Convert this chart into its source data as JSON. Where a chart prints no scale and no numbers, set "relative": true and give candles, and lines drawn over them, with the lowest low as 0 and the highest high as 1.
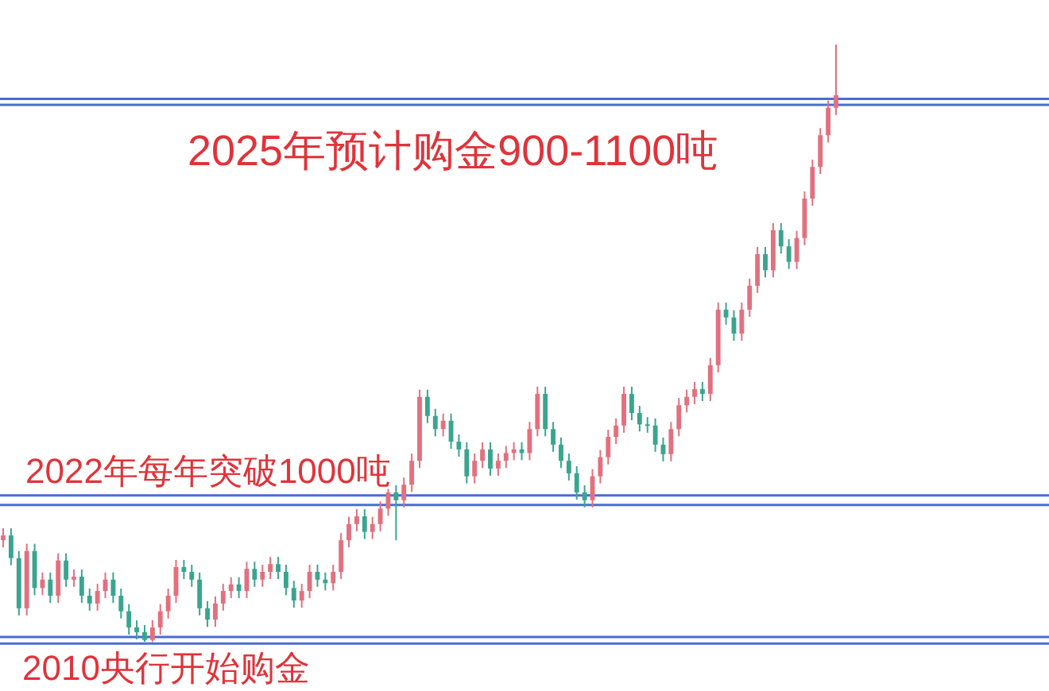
{
  "chart_data": {
    "type": "candlestick",
    "relative": true,
    "categories": [
      null,
      null,
      null,
      null,
      null,
      null,
      null,
      null,
      null,
      null,
      null,
      null,
      null,
      null,
      null,
      null,
      null,
      null,
      null,
      null,
      null,
      null,
      null,
      null,
      null,
      null,
      null,
      null,
      null,
      null,
      null,
      null,
      null,
      null,
      null,
      null,
      null,
      null,
      null,
      null,
      null,
      null,
      null,
      null,
      null,
      null,
      null,
      null,
      null,
      null,
      null,
      null,
      null,
      null,
      null,
      null,
      null,
      null,
      null,
      null,
      null,
      null,
      null,
      null,
      null,
      null,
      null,
      null,
      null,
      null,
      null,
      null,
      null,
      null,
      null,
      null,
      null,
      null,
      null,
      null,
      null,
      null,
      null,
      null,
      null,
      null,
      null,
      null,
      null,
      null,
      null,
      null,
      null,
      null,
      null,
      null,
      null,
      null,
      null,
      null,
      null,
      null,
      null,
      null,
      null,
      null,
      null
    ],
    "ohlc": [
      [
        0.17,
        0.19,
        0.158,
        0.178
      ],
      [
        0.178,
        0.19,
        0.128,
        0.14
      ],
      [
        0.14,
        0.152,
        0.044,
        0.056
      ],
      [
        0.056,
        0.164,
        0.044,
        0.152
      ],
      [
        0.152,
        0.164,
        0.078,
        0.09
      ],
      [
        0.09,
        0.116,
        0.078,
        0.104
      ],
      [
        0.104,
        0.116,
        0.065,
        0.077
      ],
      [
        0.077,
        0.148,
        0.065,
        0.136
      ],
      [
        0.136,
        0.148,
        0.092,
        0.104
      ],
      [
        0.104,
        0.121,
        0.092,
        0.109
      ],
      [
        0.109,
        0.121,
        0.065,
        0.077
      ],
      [
        0.077,
        0.089,
        0.052,
        0.064
      ],
      [
        0.064,
        0.097,
        0.052,
        0.085
      ],
      [
        0.085,
        0.116,
        0.073,
        0.104
      ],
      [
        0.104,
        0.116,
        0.065,
        0.077
      ],
      [
        0.077,
        0.089,
        0.039,
        0.051
      ],
      [
        0.051,
        0.063,
        0.012,
        0.024
      ],
      [
        0.024,
        0.036,
        0.004,
        0.016
      ],
      [
        0.016,
        0.028,
        0,
        0.003
      ],
      [
        0.003,
        0.036,
        0,
        0.024
      ],
      [
        0.024,
        0.063,
        0.012,
        0.051
      ],
      [
        0.051,
        0.089,
        0.039,
        0.077
      ],
      [
        0.077,
        0.137,
        0.065,
        0.125
      ],
      [
        0.125,
        0.137,
        0.105,
        0.117
      ],
      [
        0.117,
        0.129,
        0.092,
        0.104
      ],
      [
        0.104,
        0.116,
        0.044,
        0.056
      ],
      [
        0.056,
        0.068,
        0.025,
        0.037
      ],
      [
        0.037,
        0.076,
        0.025,
        0.064
      ],
      [
        0.064,
        0.097,
        0.052,
        0.085
      ],
      [
        0.085,
        0.108,
        0.073,
        0.096
      ],
      [
        0.096,
        0.108,
        0.073,
        0.085
      ],
      [
        0.085,
        0.134,
        0.073,
        0.122
      ],
      [
        0.122,
        0.134,
        0.092,
        0.104
      ],
      [
        0.104,
        0.129,
        0.092,
        0.117
      ],
      [
        0.117,
        0.142,
        0.105,
        0.13
      ],
      [
        0.13,
        0.142,
        0.105,
        0.117
      ],
      [
        0.117,
        0.129,
        0.078,
        0.09
      ],
      [
        0.09,
        0.102,
        0.057,
        0.069
      ],
      [
        0.069,
        0.097,
        0.057,
        0.085
      ],
      [
        0.085,
        0.129,
        0.073,
        0.117
      ],
      [
        0.117,
        0.129,
        0.092,
        0.104
      ],
      [
        0.104,
        0.116,
        0.086,
        0.098
      ],
      [
        0.098,
        0.129,
        0.086,
        0.117
      ],
      [
        0.117,
        0.182,
        0.105,
        0.17
      ],
      [
        0.17,
        0.209,
        0.158,
        0.197
      ],
      [
        0.197,
        0.222,
        0.185,
        0.21
      ],
      [
        0.21,
        0.222,
        0.172,
        0.184
      ],
      [
        0.184,
        0.209,
        0.172,
        0.197
      ],
      [
        0.197,
        0.235,
        0.185,
        0.223
      ],
      [
        0.223,
        0.262,
        0.211,
        0.25
      ],
      [
        0.25,
        0.262,
        0.17,
        0.237
      ],
      [
        0.237,
        0.275,
        0.225,
        0.263
      ],
      [
        0.263,
        0.315,
        0.251,
        0.303
      ],
      [
        0.303,
        0.422,
        0.291,
        0.41
      ],
      [
        0.41,
        0.422,
        0.366,
        0.378
      ],
      [
        0.378,
        0.39,
        0.344,
        0.356
      ],
      [
        0.356,
        0.382,
        0.344,
        0.37
      ],
      [
        0.37,
        0.382,
        0.323,
        0.335
      ],
      [
        0.335,
        0.347,
        0.31,
        0.322
      ],
      [
        0.322,
        0.334,
        0.265,
        0.277
      ],
      [
        0.277,
        0.315,
        0.265,
        0.303
      ],
      [
        0.303,
        0.334,
        0.291,
        0.322
      ],
      [
        0.322,
        0.334,
        0.278,
        0.29
      ],
      [
        0.29,
        0.315,
        0.278,
        0.303
      ],
      [
        0.303,
        0.328,
        0.291,
        0.316
      ],
      [
        0.316,
        0.334,
        0.304,
        0.322
      ],
      [
        0.322,
        0.334,
        0.304,
        0.316
      ],
      [
        0.316,
        0.368,
        0.304,
        0.356
      ],
      [
        0.356,
        0.427,
        0.344,
        0.415
      ],
      [
        0.415,
        0.427,
        0.344,
        0.356
      ],
      [
        0.356,
        0.368,
        0.318,
        0.33
      ],
      [
        0.33,
        0.342,
        0.291,
        0.303
      ],
      [
        0.303,
        0.315,
        0.27,
        0.282
      ],
      [
        0.282,
        0.294,
        0.238,
        0.25
      ],
      [
        0.25,
        0.262,
        0.225,
        0.237
      ],
      [
        0.237,
        0.289,
        0.225,
        0.277
      ],
      [
        0.277,
        0.321,
        0.265,
        0.309
      ],
      [
        0.309,
        0.355,
        0.297,
        0.343
      ],
      [
        0.343,
        0.374,
        0.331,
        0.362
      ],
      [
        0.362,
        0.427,
        0.35,
        0.415
      ],
      [
        0.415,
        0.427,
        0.371,
        0.383
      ],
      [
        0.383,
        0.395,
        0.352,
        0.364
      ],
      [
        0.364,
        0.376,
        0.35,
        0.362
      ],
      [
        0.362,
        0.374,
        0.318,
        0.33
      ],
      [
        0.33,
        0.342,
        0.302,
        0.314
      ],
      [
        0.314,
        0.368,
        0.302,
        0.356
      ],
      [
        0.356,
        0.408,
        0.344,
        0.396
      ],
      [
        0.396,
        0.422,
        0.384,
        0.41
      ],
      [
        0.41,
        0.435,
        0.398,
        0.423
      ],
      [
        0.423,
        0.435,
        0.403,
        0.415
      ],
      [
        0.415,
        0.475,
        0.403,
        0.463
      ],
      [
        0.463,
        0.568,
        0.451,
        0.556
      ],
      [
        0.556,
        0.568,
        0.531,
        0.543
      ],
      [
        0.543,
        0.555,
        0.504,
        0.516
      ],
      [
        0.516,
        0.568,
        0.504,
        0.556
      ],
      [
        0.556,
        0.608,
        0.544,
        0.596
      ],
      [
        0.596,
        0.661,
        0.584,
        0.649
      ],
      [
        0.649,
        0.661,
        0.61,
        0.622
      ],
      [
        0.622,
        0.701,
        0.61,
        0.689
      ],
      [
        0.689,
        0.701,
        0.65,
        0.662
      ],
      [
        0.662,
        0.674,
        0.624,
        0.636
      ],
      [
        0.636,
        0.688,
        0.624,
        0.676
      ],
      [
        0.676,
        0.754,
        0.664,
        0.742
      ],
      [
        0.742,
        0.807,
        0.73,
        0.795
      ],
      [
        0.795,
        0.86,
        0.783,
        0.848
      ],
      [
        0.848,
        0.906,
        0.836,
        0.894
      ],
      [
        0.894,
        1.0,
        0.882,
        0.915
      ]
    ],
    "ref_lines": [
      {
        "axis": "y",
        "value": 0.909,
        "color": "#4a6cd4",
        "label": "2025年预计购金900-1100吨"
      },
      {
        "axis": "y",
        "value": 0.899,
        "color": "#4a6cd4"
      },
      {
        "axis": "y",
        "value": 0.245,
        "color": "#4a6cd4",
        "label": "2022年每年突破1000吨"
      },
      {
        "axis": "y",
        "value": 0.229,
        "color": "#4a6cd4"
      },
      {
        "axis": "y",
        "value": 0.008,
        "color": "#4a6cd4",
        "label": "2010央行开始购金"
      },
      {
        "axis": "y",
        "value": -0.003,
        "color": "#4a6cd4"
      }
    ]
  }
}
